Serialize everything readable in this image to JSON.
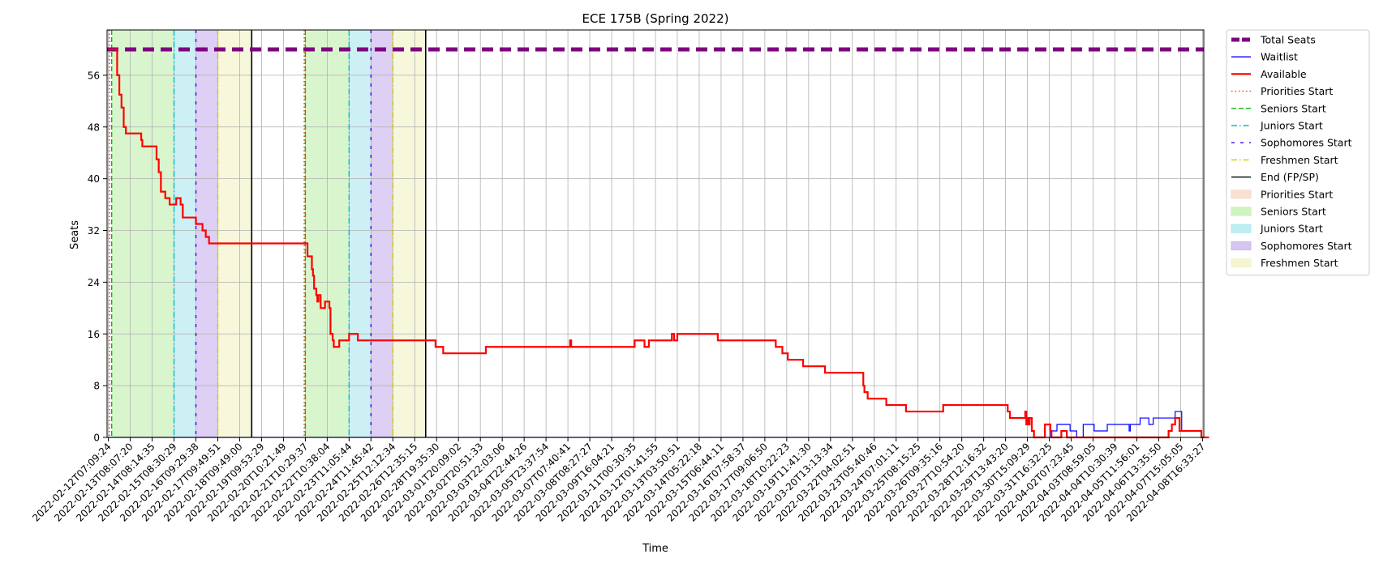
{
  "chart_data": {
    "type": "line",
    "title": "ECE 175B (Spring 2022)",
    "xlabel": "Time",
    "ylabel": "Seats",
    "ylim": [
      0,
      63
    ],
    "yticks": [
      0,
      8,
      16,
      24,
      32,
      40,
      48,
      56
    ],
    "grid": true,
    "legend_position": "outside-right",
    "x_tick_labels": [
      "2022-02-12T07:09:24",
      "2022-02-13T08:07:20",
      "2022-02-14T08:14:35",
      "2022-02-15T08:30:29",
      "2022-02-16T09:29:38",
      "2022-02-17T09:49:51",
      "2022-02-18T09:49:00",
      "2022-02-19T09:53:29",
      "2022-02-20T10:21:49",
      "2022-02-21T10:29:37",
      "2022-02-22T10:38:04",
      "2022-02-23T11:05:44",
      "2022-02-24T11:45:42",
      "2022-02-25T12:12:34",
      "2022-02-26T12:35:15",
      "2022-02-28T19:35:30",
      "2022-03-01T20:09:02",
      "2022-03-02T20:51:33",
      "2022-03-03T22:03:06",
      "2022-03-04T22:44:26",
      "2022-03-05T23:37:54",
      "2022-03-07T07:40:41",
      "2022-03-08T08:27:27",
      "2022-03-09T16:04:21",
      "2022-03-11T00:30:35",
      "2022-03-12T01:41:55",
      "2022-03-13T03:50:51",
      "2022-03-14T05:22:18",
      "2022-03-15T06:44:11",
      "2022-03-16T07:58:37",
      "2022-03-17T09:06:50",
      "2022-03-18T10:22:23",
      "2022-03-19T11:41:30",
      "2022-03-20T13:13:34",
      "2022-03-22T04:02:51",
      "2022-03-23T05:40:46",
      "2022-03-24T07:01:11",
      "2022-03-25T08:15:25",
      "2022-03-26T09:35:16",
      "2022-03-27T10:54:20",
      "2022-03-28T12:16:32",
      "2022-03-29T13:43:20",
      "2022-03-30T15:09:29",
      "2022-03-31T16:32:25",
      "2022-04-02T07:23:45",
      "2022-04-03T08:59:05",
      "2022-04-04T10:30:39",
      "2022-04-05T11:56:01",
      "2022-04-06T13:35:50",
      "2022-04-07T15:05:05",
      "2022-04-08T16:33:27"
    ],
    "total_seats": 60,
    "series": [
      {
        "name": "Available",
        "color": "#ff0000",
        "steps": [
          [
            0,
            60
          ],
          [
            0.3,
            60
          ],
          [
            0.4,
            56
          ],
          [
            0.5,
            53
          ],
          [
            0.6,
            51
          ],
          [
            0.7,
            48
          ],
          [
            0.8,
            47
          ],
          [
            1.4,
            47
          ],
          [
            1.5,
            46
          ],
          [
            1.55,
            45
          ],
          [
            2.1,
            45
          ],
          [
            2.2,
            43
          ],
          [
            2.3,
            41
          ],
          [
            2.4,
            38
          ],
          [
            2.6,
            37
          ],
          [
            2.8,
            36
          ],
          [
            3.1,
            37
          ],
          [
            3.3,
            36
          ],
          [
            3.4,
            34
          ],
          [
            3.95,
            34
          ],
          [
            4.0,
            33
          ],
          [
            4.3,
            32
          ],
          [
            4.45,
            31
          ],
          [
            4.6,
            30
          ],
          [
            9.0,
            30
          ],
          [
            9.1,
            28
          ],
          [
            9.3,
            26
          ],
          [
            9.35,
            25
          ],
          [
            9.4,
            23
          ],
          [
            9.5,
            22
          ],
          [
            9.55,
            21
          ],
          [
            9.6,
            22
          ],
          [
            9.7,
            20
          ],
          [
            9.9,
            21
          ],
          [
            10.1,
            20
          ],
          [
            10.15,
            16
          ],
          [
            10.25,
            15
          ],
          [
            10.3,
            14
          ],
          [
            10.55,
            15
          ],
          [
            11.0,
            16
          ],
          [
            11.4,
            15
          ],
          [
            14.7,
            15
          ],
          [
            14.95,
            14
          ],
          [
            15.3,
            13
          ],
          [
            17.2,
            13
          ],
          [
            17.25,
            14
          ],
          [
            21.05,
            14
          ],
          [
            21.1,
            15
          ],
          [
            21.15,
            14
          ],
          [
            23.9,
            14
          ],
          [
            24.05,
            15
          ],
          [
            24.4,
            15
          ],
          [
            24.5,
            14
          ],
          [
            24.7,
            15
          ],
          [
            25.7,
            15
          ],
          [
            25.75,
            16
          ],
          [
            25.85,
            15
          ],
          [
            26.0,
            16
          ],
          [
            27.8,
            16
          ],
          [
            27.85,
            15
          ],
          [
            30.4,
            15
          ],
          [
            30.5,
            14
          ],
          [
            30.8,
            13
          ],
          [
            31.05,
            12
          ],
          [
            31.7,
            12
          ],
          [
            31.75,
            11
          ],
          [
            32.7,
            11
          ],
          [
            32.75,
            10
          ],
          [
            34.4,
            10
          ],
          [
            34.5,
            8
          ],
          [
            34.55,
            7
          ],
          [
            34.7,
            6
          ],
          [
            35.5,
            6
          ],
          [
            35.55,
            5
          ],
          [
            36.4,
            5
          ],
          [
            36.45,
            4
          ],
          [
            38.1,
            4
          ],
          [
            38.15,
            5
          ],
          [
            41.05,
            5
          ],
          [
            41.1,
            4
          ],
          [
            41.2,
            3
          ],
          [
            41.8,
            3
          ],
          [
            41.9,
            4
          ],
          [
            41.95,
            2
          ],
          [
            42.0,
            3
          ],
          [
            42.05,
            2
          ],
          [
            42.1,
            3
          ],
          [
            42.2,
            1
          ],
          [
            42.3,
            0
          ],
          [
            42.75,
            0
          ],
          [
            42.8,
            2
          ],
          [
            43.05,
            1
          ],
          [
            43.1,
            0
          ],
          [
            43.5,
            0
          ],
          [
            43.55,
            1
          ],
          [
            43.75,
            1
          ],
          [
            43.8,
            0
          ],
          [
            48.4,
            0
          ],
          [
            48.45,
            1
          ],
          [
            48.6,
            2
          ],
          [
            48.75,
            3
          ],
          [
            48.9,
            3
          ],
          [
            48.95,
            1
          ],
          [
            49.9,
            1
          ],
          [
            49.95,
            0
          ],
          [
            50.3,
            0
          ]
        ]
      },
      {
        "name": "Waitlist",
        "color": "#0000ff",
        "steps": [
          [
            0,
            0
          ],
          [
            43.0,
            0
          ],
          [
            43.05,
            1
          ],
          [
            43.3,
            1
          ],
          [
            43.35,
            2
          ],
          [
            43.9,
            2
          ],
          [
            43.95,
            1
          ],
          [
            44.2,
            1
          ],
          [
            44.25,
            0
          ],
          [
            44.5,
            0
          ],
          [
            44.55,
            2
          ],
          [
            45.0,
            2
          ],
          [
            45.05,
            1
          ],
          [
            45.6,
            1
          ],
          [
            45.65,
            2
          ],
          [
            46.6,
            2
          ],
          [
            46.65,
            1
          ],
          [
            46.7,
            2
          ],
          [
            47.1,
            2
          ],
          [
            47.15,
            3
          ],
          [
            47.5,
            3
          ],
          [
            47.55,
            2
          ],
          [
            47.7,
            2
          ],
          [
            47.75,
            3
          ],
          [
            48.7,
            3
          ],
          [
            48.75,
            4
          ],
          [
            49.0,
            4
          ],
          [
            49.05,
            1
          ],
          [
            49.9,
            1
          ],
          [
            49.95,
            0
          ],
          [
            50.3,
            0
          ]
        ]
      }
    ],
    "phases": [
      {
        "name": "Seniors Start",
        "color": "#c4f0b4",
        "start": 0.15,
        "end": 3.0
      },
      {
        "name": "Juniors Start",
        "color": "#b0e8ee",
        "start": 3.0,
        "end": 4.0
      },
      {
        "name": "Sophomores Start",
        "color": "#cdb6ee",
        "start": 4.0,
        "end": 5.0
      },
      {
        "name": "Freshmen Start",
        "color": "#f3f3c8",
        "start": 5.0,
        "end": 6.55
      },
      {
        "name": "Seniors Start",
        "color": "#c4f0b4",
        "start": 9.0,
        "end": 11.0
      },
      {
        "name": "Juniors Start",
        "color": "#b0e8ee",
        "start": 11.0,
        "end": 12.0
      },
      {
        "name": "Sophomores Start",
        "color": "#cdb6ee",
        "start": 12.0,
        "end": 13.0
      },
      {
        "name": "Freshmen Start",
        "color": "#f3f3c8",
        "start": 13.0,
        "end": 14.5
      }
    ],
    "phase_lines": [
      {
        "name": "Priorities Start",
        "color": "#ff3300",
        "style": "dotted",
        "x": 0.05
      },
      {
        "name": "Seniors Start",
        "color": "#00bb00",
        "style": "dashed",
        "x": 0.15
      },
      {
        "name": "Juniors Start",
        "color": "#00bbcc",
        "style": "dashdot",
        "x": 3.0
      },
      {
        "name": "Sophomores Start",
        "color": "#4400ee",
        "style": "loosedash",
        "x": 4.0
      },
      {
        "name": "Freshmen Start",
        "color": "#cccc00",
        "style": "dashdot",
        "x": 5.0
      },
      {
        "name": "End (FP/SP)",
        "color": "#000000",
        "style": "solid",
        "x": 6.55
      },
      {
        "name": "Priorities Start",
        "color": "#ff3300",
        "style": "dotted",
        "x": 8.95
      },
      {
        "name": "Seniors Start",
        "color": "#00bb00",
        "style": "dashed",
        "x": 9.0
      },
      {
        "name": "Juniors Start",
        "color": "#00bbcc",
        "style": "dashdot",
        "x": 11.0
      },
      {
        "name": "Sophomores Start",
        "color": "#4400ee",
        "style": "loosedash",
        "x": 12.0
      },
      {
        "name": "Freshmen Start",
        "color": "#cccc00",
        "style": "dashdot",
        "x": 13.0
      },
      {
        "name": "End (FP/SP)",
        "color": "#000000",
        "style": "solid",
        "x": 14.5
      }
    ],
    "legend": [
      {
        "label": "Total Seats",
        "kind": "line",
        "color": "#800080",
        "style": "thickdash"
      },
      {
        "label": "Waitlist",
        "kind": "line",
        "color": "#0000ff",
        "style": "solid"
      },
      {
        "label": "Available",
        "kind": "line",
        "color": "#ff0000",
        "style": "solidthick"
      },
      {
        "label": "Priorities Start",
        "kind": "line",
        "color": "#ff3300",
        "style": "dotted"
      },
      {
        "label": "Seniors Start",
        "kind": "line",
        "color": "#00bb00",
        "style": "dashed"
      },
      {
        "label": "Juniors Start",
        "kind": "line",
        "color": "#00bbcc",
        "style": "dashdot"
      },
      {
        "label": "Sophomores Start",
        "kind": "line",
        "color": "#4400ee",
        "style": "loosedash"
      },
      {
        "label": "Freshmen Start",
        "kind": "line",
        "color": "#cccc00",
        "style": "dashdot"
      },
      {
        "label": "End (FP/SP)",
        "kind": "line",
        "color": "#000000",
        "style": "solid"
      },
      {
        "label": "Priorities Start",
        "kind": "patch",
        "color": "#f8d8c8"
      },
      {
        "label": "Seniors Start",
        "kind": "patch",
        "color": "#c4f0b4"
      },
      {
        "label": "Juniors Start",
        "kind": "patch",
        "color": "#b0e8ee"
      },
      {
        "label": "Sophomores Start",
        "kind": "patch",
        "color": "#cdb6ee"
      },
      {
        "label": "Freshmen Start",
        "kind": "patch",
        "color": "#f3f3c8"
      }
    ]
  }
}
